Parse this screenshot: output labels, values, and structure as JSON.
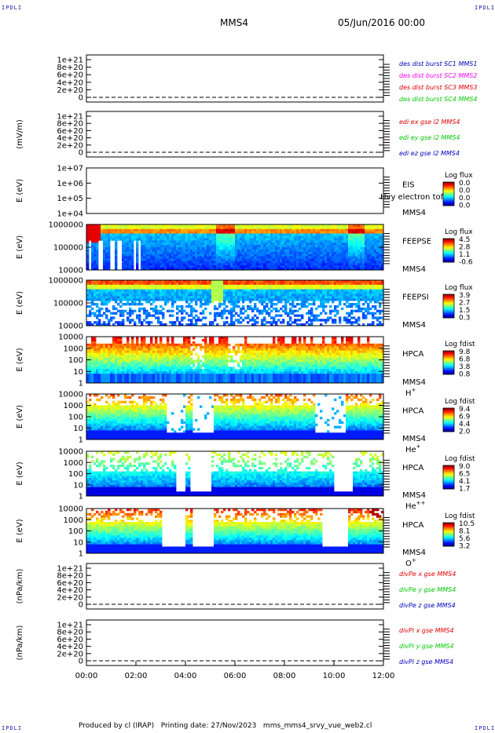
{
  "corners": {
    "tl": "IPDLI",
    "tr": "IPDLI",
    "bl": "IPDLI",
    "br": "IPDLI"
  },
  "header": {
    "spacecraft": "MMS4",
    "date": "05/Jun/2016 00:00"
  },
  "footer": {
    "text": "Produced by cl (IRAP)   Printing date: 27/Nov/2023   mms_mms4_srvy_vue_web2.cl"
  },
  "colors": {
    "red": "#e00000",
    "magenta": "#ff00ff",
    "green": "#00c800",
    "blue": "#0000c0"
  },
  "chart_data": [
    {
      "type": "line",
      "ylabel": "",
      "ticks": [
        "1e+21",
        "8e+20",
        "6e+20",
        "4e+20",
        "2e+20",
        "0"
      ],
      "legend": [
        {
          "name": "des dist burst SC1 MMS1",
          "color": "#0000c0"
        },
        {
          "name": "des dist burst SC2 MMS2",
          "color": "#ff00ff"
        },
        {
          "name": "des dist burst SC3 MMS3",
          "color": "#e00000"
        },
        {
          "name": "des dist burst SC4 MMS4",
          "color": "#00c800"
        }
      ],
      "zero_line": "dashed"
    },
    {
      "type": "line",
      "ylabel": "(mV/m)",
      "ticks": [
        "1e+21",
        "8e+20",
        "6e+20",
        "4e+20",
        "2e+20",
        "0"
      ],
      "legend": [
        {
          "name": "edi ex gse l2 MMS4",
          "color": "#e00000"
        },
        {
          "name": "edi ey gse l2 MMS4",
          "color": "#00c800"
        },
        {
          "name": "edi ez gse l2 MMS4",
          "color": "#0000c0"
        }
      ],
      "zero_line": "dashed"
    },
    {
      "type": "heatmap",
      "ylabel": "E (eV)",
      "ticks": [
        "1e+07",
        "1e+06",
        "1e+05",
        "1e+04"
      ],
      "instrument": [
        "EIS",
        "MMS4"
      ],
      "overlay": "Hvy electron tof",
      "cbar_title": "Log flux",
      "cbar_ticks": [
        "0.0",
        "0.0",
        "0.0",
        "0.0"
      ],
      "data": "empty"
    },
    {
      "type": "heatmap",
      "ylabel": "E (eV)",
      "ticks": [
        "1000000",
        "100000",
        "10000"
      ],
      "instrument": [
        "FEEPSE",
        "MMS4"
      ],
      "cbar_title": "Log flux",
      "cbar_ticks": [
        "4.5",
        "2.8",
        "1.1",
        "-0.6"
      ]
    },
    {
      "type": "heatmap",
      "ylabel": "E (eV)",
      "ticks": [
        "1000000",
        "100000",
        "10000"
      ],
      "instrument": [
        "FEEPSI",
        "MMS4"
      ],
      "cbar_title": "Log flux",
      "cbar_ticks": [
        "3.9",
        "2.7",
        "1.5",
        "0.3"
      ]
    },
    {
      "type": "heatmap",
      "ylabel": "E (eV)",
      "ticks": [
        "10000",
        "1000",
        "100",
        "10",
        "1"
      ],
      "instrument": [
        "HPCA",
        "MMS4"
      ],
      "species": "H",
      "species_sup": "+",
      "cbar_title": "Log fdist",
      "cbar_ticks": [
        "9.8",
        "6.8",
        "3.8",
        "0.8"
      ]
    },
    {
      "type": "heatmap",
      "ylabel": "E (eV)",
      "ticks": [
        "10000",
        "1000",
        "100",
        "10",
        "1"
      ],
      "instrument": [
        "HPCA",
        "MMS4"
      ],
      "species": "He",
      "species_sup": "+",
      "cbar_title": "Log fdist",
      "cbar_ticks": [
        "9.4",
        "6.9",
        "4.4",
        "2.0"
      ]
    },
    {
      "type": "heatmap",
      "ylabel": "E (eV)",
      "ticks": [
        "10000",
        "1000",
        "100",
        "10",
        "1"
      ],
      "instrument": [
        "HPCA",
        "MMS4"
      ],
      "species": "He",
      "species_sup": "++",
      "cbar_title": "Log fdist",
      "cbar_ticks": [
        "9.0",
        "6.5",
        "4.1",
        "1.7"
      ]
    },
    {
      "type": "heatmap",
      "ylabel": "E (eV)",
      "ticks": [
        "10000",
        "1000",
        "100",
        "10",
        "1"
      ],
      "instrument": [
        "HPCA",
        "MMS4"
      ],
      "species": "O",
      "species_sup": "+",
      "cbar_title": "Log fdist",
      "cbar_ticks": [
        "10.5",
        "8.1",
        "5.6",
        "3.2"
      ]
    },
    {
      "type": "line",
      "ylabel": "(nPa/km)",
      "ticks": [
        "1e+21",
        "8e+20",
        "6e+20",
        "4e+20",
        "2e+20",
        "0"
      ],
      "legend": [
        {
          "name": "divPe x gse MMS4",
          "color": "#e00000"
        },
        {
          "name": "divPe y gse MMS4",
          "color": "#00c800"
        },
        {
          "name": "divPe z gse MMS4",
          "color": "#0000c0"
        }
      ],
      "zero_line": "dashed"
    },
    {
      "type": "line",
      "ylabel": "(nPa/km)",
      "ticks": [
        "1e+21",
        "8e+20",
        "6e+20",
        "4e+20",
        "2e+20",
        "0"
      ],
      "legend": [
        {
          "name": "divPi x gse MMS4",
          "color": "#e00000"
        },
        {
          "name": "divPi y gse MMS4",
          "color": "#00c800"
        },
        {
          "name": "divPi z gse MMS4",
          "color": "#0000c0"
        }
      ],
      "zero_line": "dashed"
    }
  ],
  "x_axis": {
    "ticks": [
      "00:00",
      "02:00",
      "04:00",
      "06:00",
      "08:00",
      "10:00",
      "12:00"
    ],
    "range_hours": [
      0,
      12
    ]
  }
}
